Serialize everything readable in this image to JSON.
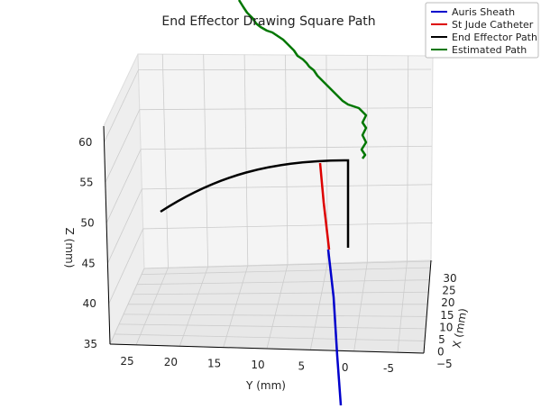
{
  "chart_data": {
    "type": "line3d",
    "title": "End Effector Drawing Square Path",
    "axes": {
      "x": {
        "label": "X (mm)",
        "ticks": [
          -5,
          0,
          5,
          10,
          15,
          20,
          25,
          30
        ],
        "range": [
          -5,
          33
        ]
      },
      "y": {
        "label": "Y (mm)",
        "ticks": [
          25,
          20,
          15,
          10,
          5,
          0,
          -5
        ],
        "range": [
          -8,
          28
        ]
      },
      "z": {
        "label": "Z (mm)",
        "ticks": [
          35,
          40,
          45,
          50,
          55,
          60
        ],
        "range": [
          35,
          62
        ]
      }
    },
    "legend": {
      "position": "top-right",
      "entries": [
        {
          "name": "Auris Sheath",
          "color": "#0000cc"
        },
        {
          "name": "St Jude Catheter",
          "color": "#dd0000"
        },
        {
          "name": "End Effector Path",
          "color": "#000000"
        },
        {
          "name": "Estimated Path",
          "color": "#007700"
        }
      ]
    },
    "series": [
      {
        "name": "Auris Sheath",
        "color": "#0000cc"
      },
      {
        "name": "St Jude Catheter",
        "color": "#dd0000"
      },
      {
        "name": "End Effector Path",
        "color": "#000000"
      },
      {
        "name": "Estimated Path",
        "color": "#007700"
      }
    ],
    "grid": true
  }
}
